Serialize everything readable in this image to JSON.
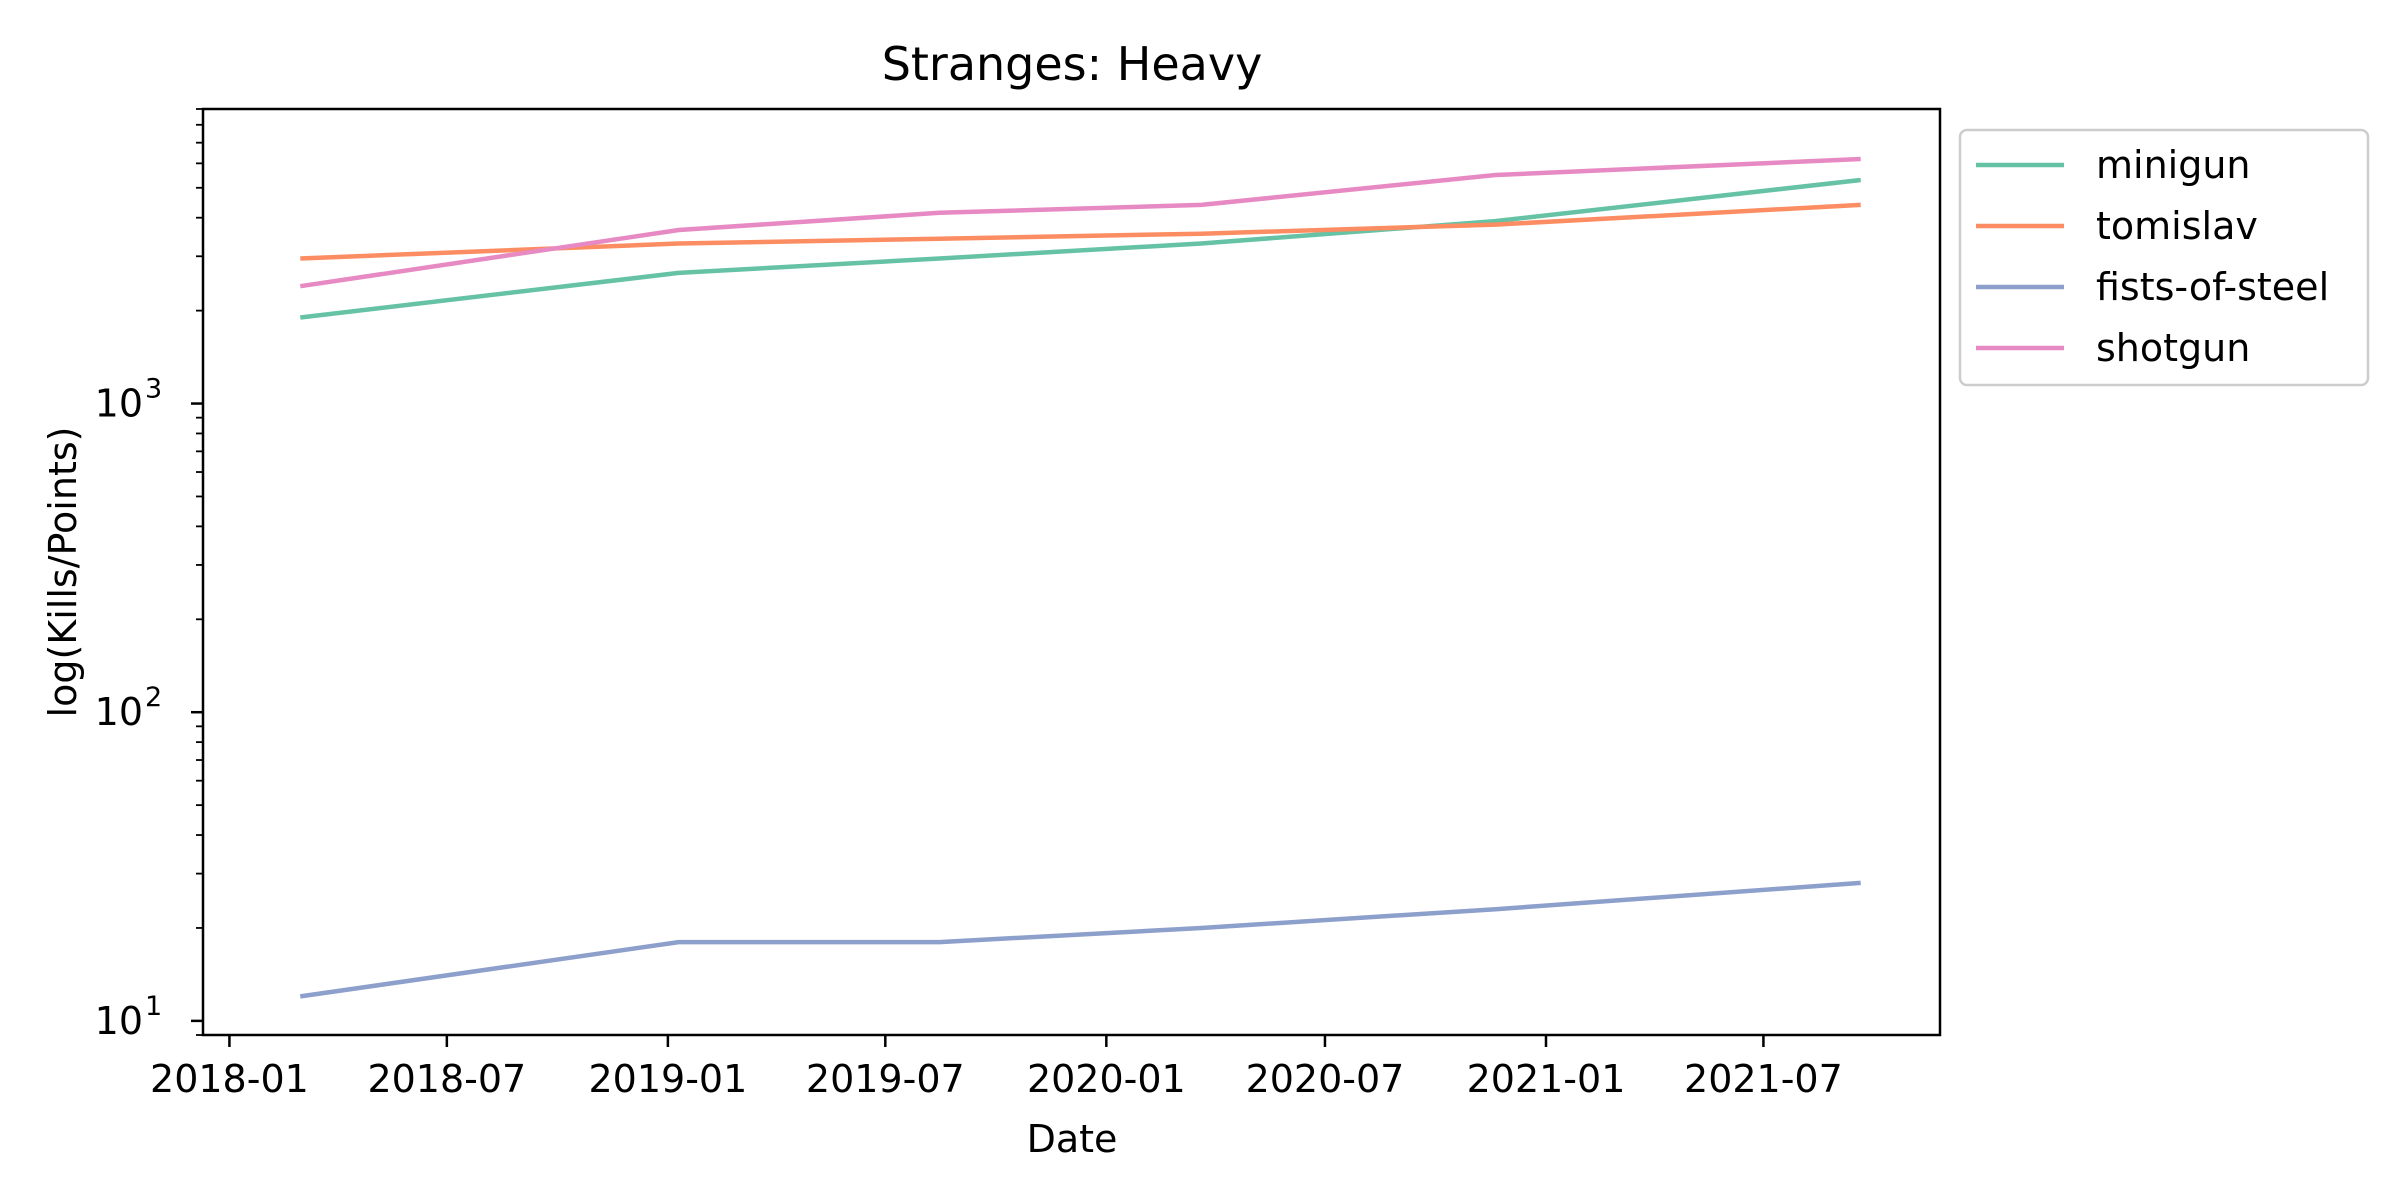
{
  "chart_data": {
    "type": "line",
    "title": "Stranges: Heavy",
    "xlabel": "Date",
    "ylabel": "log(Kills/Points)",
    "yscale": "log",
    "ylim": [
      9,
      9000
    ],
    "xlim": [
      "2017-12-10",
      "2021-11-25"
    ],
    "x_ticks": [
      "2018-01",
      "2018-07",
      "2019-01",
      "2019-07",
      "2020-01",
      "2020-07",
      "2021-01",
      "2021-07"
    ],
    "y_ticks": [
      {
        "value": 10,
        "base": "10",
        "exp": "1"
      },
      {
        "value": 100,
        "base": "10",
        "exp": "2"
      },
      {
        "value": 1000,
        "base": "10",
        "exp": "3"
      }
    ],
    "grid": false,
    "legend_position": "outside-top-right",
    "x": [
      "2018-03-01",
      "2019-01-10",
      "2019-08-15",
      "2020-03-20",
      "2020-11-20",
      "2021-09-20"
    ],
    "series": [
      {
        "name": "minigun",
        "color": "#66c2a5",
        "values": [
          1900,
          2650,
          2950,
          3300,
          3900,
          5300
        ]
      },
      {
        "name": "tomislav",
        "color": "#fc8d62",
        "values": [
          2950,
          3300,
          3420,
          3550,
          3800,
          4400
        ]
      },
      {
        "name": "fists-of-steel",
        "color": "#8da0cb",
        "values": [
          12,
          18,
          18,
          20,
          23,
          28
        ]
      },
      {
        "name": "shotgun",
        "color": "#e78ac3",
        "values": [
          2400,
          3650,
          4150,
          4400,
          5500,
          6200
        ]
      }
    ]
  }
}
